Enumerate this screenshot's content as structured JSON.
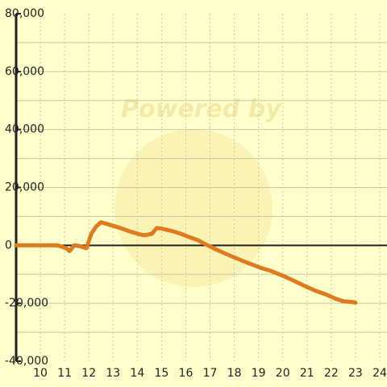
{
  "chart_data": {
    "type": "line",
    "title": "",
    "xlabel": "",
    "ylabel": "",
    "xlim": [
      9,
      24.3
    ],
    "ylim": [
      -40000,
      80000
    ],
    "x_ticks": [
      10,
      11,
      12,
      13,
      14,
      15,
      16,
      17,
      18,
      19,
      20,
      21,
      22,
      23,
      24
    ],
    "y_ticks": [
      -40000,
      -20000,
      0,
      20000,
      40000,
      60000,
      80000
    ],
    "x_tick_labels": [
      "10",
      "11",
      "12",
      "13",
      "14",
      "15",
      "16",
      "17",
      "18",
      "19",
      "20",
      "21",
      "22",
      "23",
      "24"
    ],
    "y_tick_labels": [
      "-40,000",
      "-20,000",
      "0",
      "20,000",
      "40,000",
      "60,000",
      "80,000"
    ],
    "grid": true,
    "line_color": "#e07a1f",
    "series": [
      {
        "x": [
          9.0,
          10.7,
          10.9,
          11.1,
          11.2,
          11.4,
          11.6,
          11.9,
          12.1,
          12.3,
          12.5,
          12.7,
          12.9,
          13.3,
          13.7,
          14.1,
          14.3,
          14.6,
          14.8,
          15.0,
          15.3,
          15.5,
          15.8,
          16.1,
          16.5,
          16.9,
          17.4,
          17.9,
          18.3,
          18.7,
          19.1,
          19.5,
          20.0,
          20.4,
          20.9,
          21.3,
          21.8,
          22.2,
          22.5,
          22.8,
          23.0
        ],
        "y": [
          0,
          0,
          -500,
          -1200,
          -2000,
          0,
          -200,
          -1000,
          4000,
          6500,
          8000,
          7500,
          7000,
          6000,
          4800,
          3800,
          3500,
          4000,
          6000,
          5800,
          5200,
          4800,
          4000,
          3000,
          1800,
          0,
          -2000,
          -3800,
          -5200,
          -6500,
          -7800,
          -8800,
          -10500,
          -12000,
          -14000,
          -15500,
          -17000,
          -18500,
          -19300,
          -19500,
          -19800
        ]
      }
    ]
  }
}
